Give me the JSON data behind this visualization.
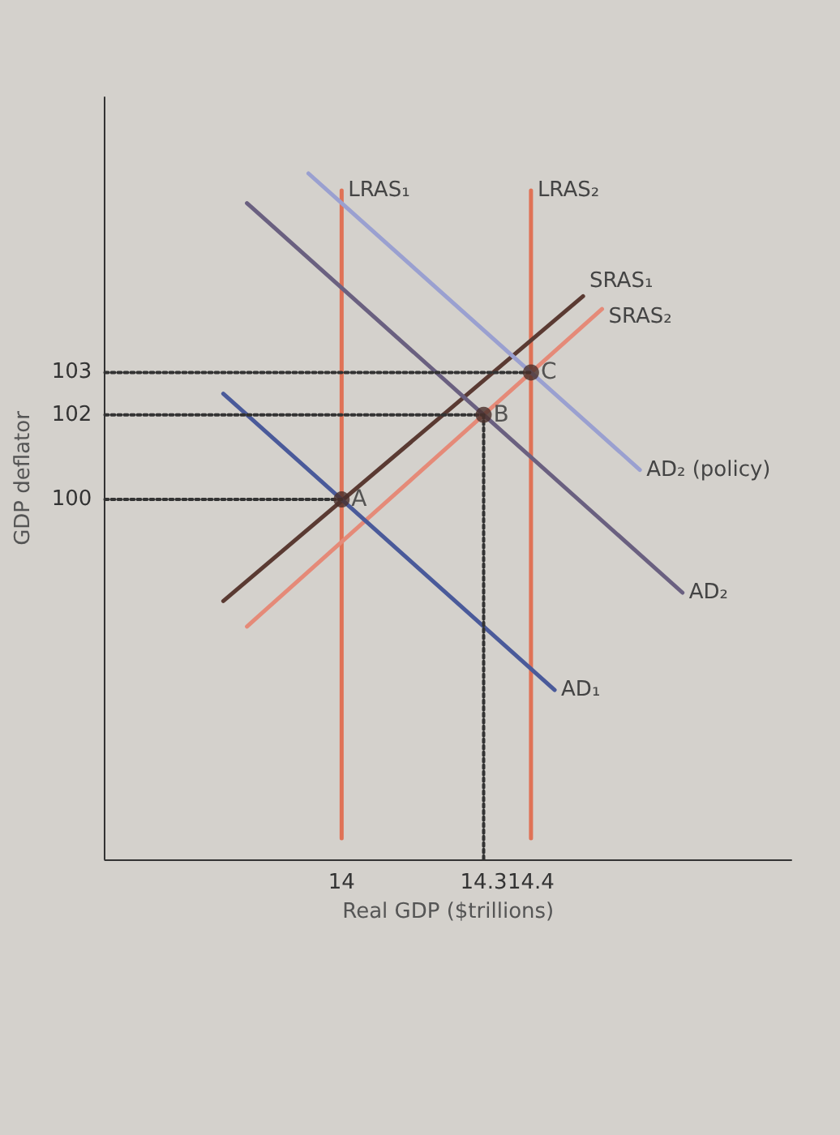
{
  "chart_data": {
    "type": "line",
    "xlabel": "Real GDP ($trillions)",
    "ylabel": "GDP deflator",
    "xlim": [
      13.5,
      14.95
    ],
    "ylim": [
      91.5,
      109.5
    ],
    "xticks": [
      14,
      14.3,
      14.4
    ],
    "yticks": [
      100,
      102,
      103
    ],
    "grid": false,
    "legend": false,
    "marker": "none",
    "line_style": "solid",
    "series": [
      {
        "name": "LRAS₁",
        "color": "#e07256",
        "x": [
          14,
          14
        ],
        "values": [
          92,
          107.3
        ]
      },
      {
        "name": "LRAS₂",
        "color": "#e07256",
        "x": [
          14.4,
          14.4
        ],
        "values": [
          92,
          107.3
        ]
      },
      {
        "name": "SRAS₁",
        "color": "#5a3a32",
        "x": [
          13.75,
          14.51
        ],
        "values": [
          97.6,
          104.8
        ]
      },
      {
        "name": "SRAS₂",
        "color": "#e58a78",
        "x": [
          13.8,
          14.55
        ],
        "values": [
          97,
          104.5
        ]
      },
      {
        "name": "AD₁",
        "color": "#4a5a9a",
        "x": [
          13.75,
          14.45
        ],
        "values": [
          102.5,
          95.5
        ]
      },
      {
        "name": "AD₂",
        "color": "#6a6080",
        "x": [
          13.8,
          14.72
        ],
        "values": [
          107,
          97.8
        ]
      },
      {
        "name": "AD₂ (policy)",
        "color": "#9aa0d0",
        "x": [
          13.93,
          14.63
        ],
        "values": [
          107.7,
          100.7
        ]
      },
      {
        "color": "#333333",
        "line_style": "dotted",
        "x": [
          13.5,
          14.4
        ],
        "values": [
          103,
          103
        ]
      },
      {
        "color": "#333333",
        "line_style": "dotted",
        "x": [
          13.5,
          14.3
        ],
        "values": [
          102,
          102
        ]
      },
      {
        "color": "#333333",
        "line_style": "dotted",
        "x": [
          13.5,
          14
        ],
        "values": [
          100,
          100
        ]
      },
      {
        "color": "#333333",
        "line_style": "dotted",
        "x": [
          14.3,
          14.3
        ],
        "values": [
          102,
          91.5
        ]
      },
      {
        "type": "scatter",
        "marker": "circle",
        "color": "#4a302a",
        "x": [
          14,
          14.3,
          14.4
        ],
        "values": [
          100,
          102,
          103
        ]
      }
    ],
    "annotations": [
      {
        "text": "A",
        "x": 14,
        "y": 100
      },
      {
        "text": "B",
        "x": 14.3,
        "y": 102
      },
      {
        "text": "C",
        "x": 14.4,
        "y": 103
      }
    ]
  }
}
